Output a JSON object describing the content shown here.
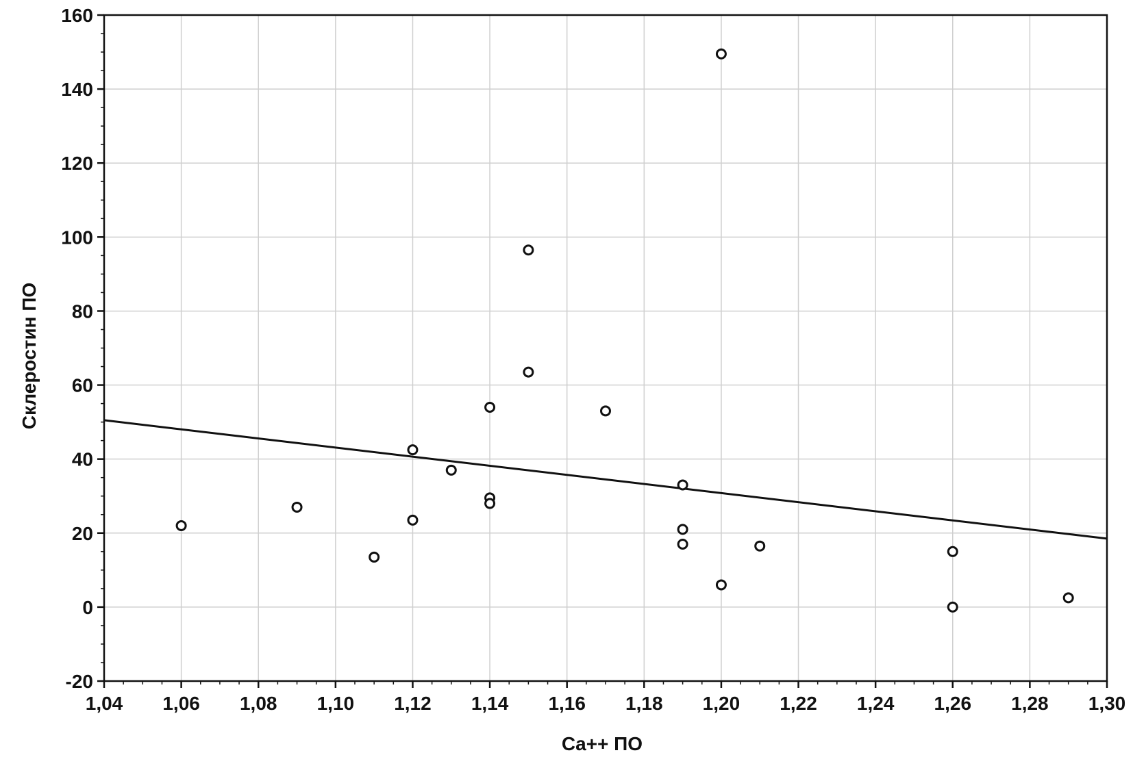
{
  "chart_data": {
    "type": "scatter",
    "title": "",
    "xlabel": "Ca++ ПО",
    "ylabel": "Склеростин ПО",
    "xlim": [
      1.04,
      1.3
    ],
    "ylim": [
      -20,
      160
    ],
    "x_ticks": [
      1.04,
      1.06,
      1.08,
      1.1,
      1.12,
      1.14,
      1.16,
      1.18,
      1.2,
      1.22,
      1.24,
      1.26,
      1.28,
      1.3
    ],
    "x_tick_labels": [
      "1,04",
      "1,06",
      "1,08",
      "1,10",
      "1,12",
      "1,14",
      "1,16",
      "1,18",
      "1,20",
      "1,22",
      "1,24",
      "1,26",
      "1,28",
      "1,30"
    ],
    "y_ticks": [
      -20,
      0,
      20,
      40,
      60,
      80,
      100,
      120,
      140,
      160
    ],
    "y_tick_labels": [
      "-20",
      "0",
      "20",
      "40",
      "60",
      "80",
      "100",
      "120",
      "140",
      "160"
    ],
    "grid": true,
    "series": [
      {
        "marker": "open-circle",
        "color": "#111111",
        "points": [
          {
            "x": 1.06,
            "y": 22.0
          },
          {
            "x": 1.09,
            "y": 27.0
          },
          {
            "x": 1.11,
            "y": 13.5
          },
          {
            "x": 1.12,
            "y": 42.5
          },
          {
            "x": 1.12,
            "y": 23.5
          },
          {
            "x": 1.13,
            "y": 37.0
          },
          {
            "x": 1.14,
            "y": 54.0
          },
          {
            "x": 1.14,
            "y": 29.5
          },
          {
            "x": 1.14,
            "y": 28.0
          },
          {
            "x": 1.15,
            "y": 96.5
          },
          {
            "x": 1.15,
            "y": 63.5
          },
          {
            "x": 1.17,
            "y": 53.0
          },
          {
            "x": 1.19,
            "y": 33.0
          },
          {
            "x": 1.19,
            "y": 21.0
          },
          {
            "x": 1.19,
            "y": 17.0
          },
          {
            "x": 1.2,
            "y": 149.5
          },
          {
            "x": 1.2,
            "y": 6.0
          },
          {
            "x": 1.21,
            "y": 16.5
          },
          {
            "x": 1.26,
            "y": 15.0
          },
          {
            "x": 1.26,
            "y": 0.0
          },
          {
            "x": 1.29,
            "y": 2.5
          }
        ]
      }
    ],
    "trend_line": {
      "color": "#111111",
      "x": [
        1.04,
        1.3
      ],
      "y": [
        50.5,
        18.5
      ]
    },
    "colors": {
      "background": "#ffffff",
      "grid": "#cfcfcf",
      "axis": "#111111"
    }
  }
}
